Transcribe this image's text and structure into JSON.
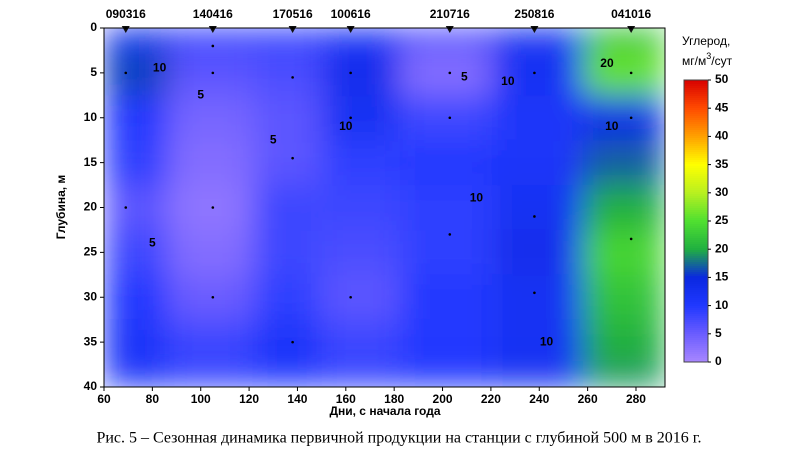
{
  "chart_data": {
    "type": "contour",
    "x_label": "Дни, с начала года",
    "y_label": "Глубина, м",
    "caption": "Рис. 5 – Сезонная динамика первичной продукции на станции с глубиной 500 м в 2016 г.",
    "xlim": [
      60,
      292
    ],
    "xticks": [
      60,
      80,
      100,
      120,
      140,
      160,
      180,
      200,
      220,
      240,
      260,
      280
    ],
    "ylim": [
      40,
      0
    ],
    "yticks": [
      0,
      5,
      10,
      15,
      20,
      25,
      30,
      35,
      40
    ],
    "stations": [
      "090316",
      "140416",
      "170516",
      "100616",
      "210716",
      "250816",
      "041016"
    ],
    "x": [
      69,
      105,
      138,
      162,
      203,
      238,
      278
    ],
    "depths": [
      0,
      5,
      10,
      15,
      20,
      25,
      30,
      35,
      40
    ],
    "values": [
      [
        12,
        16,
        10,
        9,
        6,
        8,
        10,
        11,
        11
      ],
      [
        9,
        6,
        4,
        3,
        2,
        3,
        5,
        8,
        9
      ],
      [
        9,
        7,
        6,
        6,
        8,
        8,
        9,
        11,
        10
      ],
      [
        11,
        13,
        12,
        9,
        8,
        7,
        6,
        8,
        9
      ],
      [
        7,
        3,
        8,
        10,
        9,
        9,
        10,
        10,
        10
      ],
      [
        12,
        12,
        11,
        11,
        12,
        13,
        12,
        12,
        12
      ],
      [
        22,
        26,
        14,
        17,
        20,
        24,
        22,
        20,
        19
      ]
    ],
    "samples": {
      "x": [
        69,
        69,
        69,
        105,
        105,
        105,
        105,
        105,
        138,
        138,
        138,
        138,
        162,
        162,
        162,
        162,
        203,
        203,
        203,
        203,
        238,
        238,
        238,
        238,
        278,
        278,
        278,
        278
      ],
      "y": [
        0,
        5,
        20,
        0,
        2,
        5,
        20,
        30,
        0,
        5.5,
        14.5,
        35,
        0,
        5,
        10,
        30,
        0,
        5,
        10,
        23,
        0,
        5,
        21,
        29.5,
        0,
        5,
        10,
        23.5
      ]
    },
    "contour_labels": [
      {
        "x": 83,
        "y": 4.5,
        "value": 10
      },
      {
        "x": 100,
        "y": 7.5,
        "value": 5
      },
      {
        "x": 130,
        "y": 12.5,
        "value": 5
      },
      {
        "x": 80,
        "y": 24,
        "value": 5
      },
      {
        "x": 160,
        "y": 11,
        "value": 10
      },
      {
        "x": 214,
        "y": 19,
        "value": 10
      },
      {
        "x": 227,
        "y": 6,
        "value": 10
      },
      {
        "x": 209,
        "y": 5.5,
        "value": 5
      },
      {
        "x": 243,
        "y": 35,
        "value": 10
      },
      {
        "x": 268,
        "y": 4,
        "value": 20
      },
      {
        "x": 270,
        "y": 11,
        "value": 10
      }
    ],
    "colorbar": {
      "label": [
        "Углерод,",
        "мг/м",
        "3",
        "/сут"
      ],
      "lim": [
        0,
        50
      ],
      "ticks": [
        0,
        5,
        10,
        15,
        20,
        25,
        30,
        35,
        40,
        45,
        50
      ],
      "colors": [
        "#a887ff",
        "#6a5cff",
        "#2038ff",
        "#0a28e0",
        "#20b040",
        "#50e030",
        "#b8f020",
        "#ffff00",
        "#ffa000",
        "#ff4a00",
        "#d80000"
      ]
    }
  }
}
